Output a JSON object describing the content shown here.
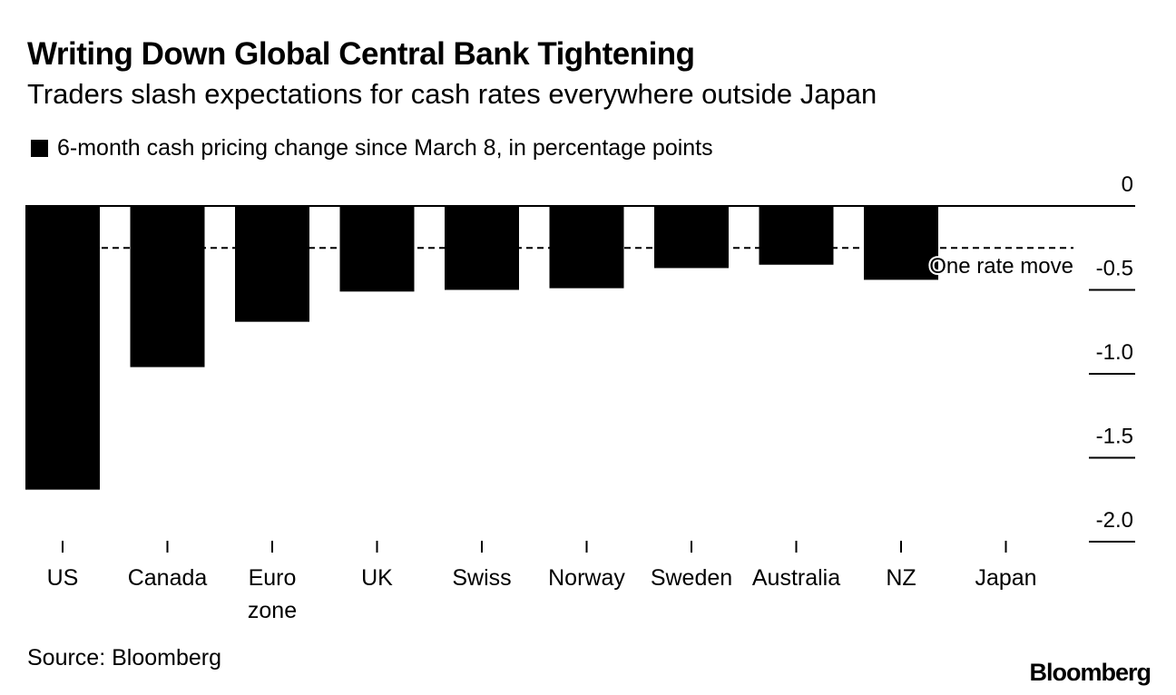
{
  "header": {
    "title": "Writing Down Global Central Bank Tightening",
    "subtitle": "Traders slash expectations for cash rates everywhere outside Japan"
  },
  "legend": {
    "label": "6-month cash pricing change since March 8, in percentage points",
    "color": "#000000"
  },
  "footer": {
    "source": "Source: Bloomberg",
    "brand": "Bloomberg"
  },
  "chart_data": {
    "type": "bar",
    "categories": [
      [
        "US"
      ],
      [
        "Canada"
      ],
      [
        "Euro",
        "zone"
      ],
      [
        "UK"
      ],
      [
        "Swiss"
      ],
      [
        "Norway"
      ],
      [
        "Sweden"
      ],
      [
        "Australia"
      ],
      [
        "NZ"
      ],
      [
        "Japan"
      ]
    ],
    "series": [
      {
        "name": "6-month cash pricing change since March 8, in percentage points",
        "values": [
          -1.69,
          -0.96,
          -0.69,
          -0.51,
          -0.5,
          -0.49,
          -0.37,
          -0.35,
          -0.44,
          0.0
        ],
        "color": "#000000"
      }
    ],
    "ylim": [
      -2.0,
      0.0
    ],
    "yticks": [
      0,
      -0.5,
      -1.0,
      -1.5,
      -2.0
    ],
    "ytick_labels": [
      "0",
      "-0.5",
      "-1.0",
      "-1.5",
      "-2.0"
    ],
    "y_axis_position": "right",
    "reference_line": {
      "value": -0.25,
      "label": "One rate move",
      "style": "dashed"
    },
    "grid": false
  }
}
